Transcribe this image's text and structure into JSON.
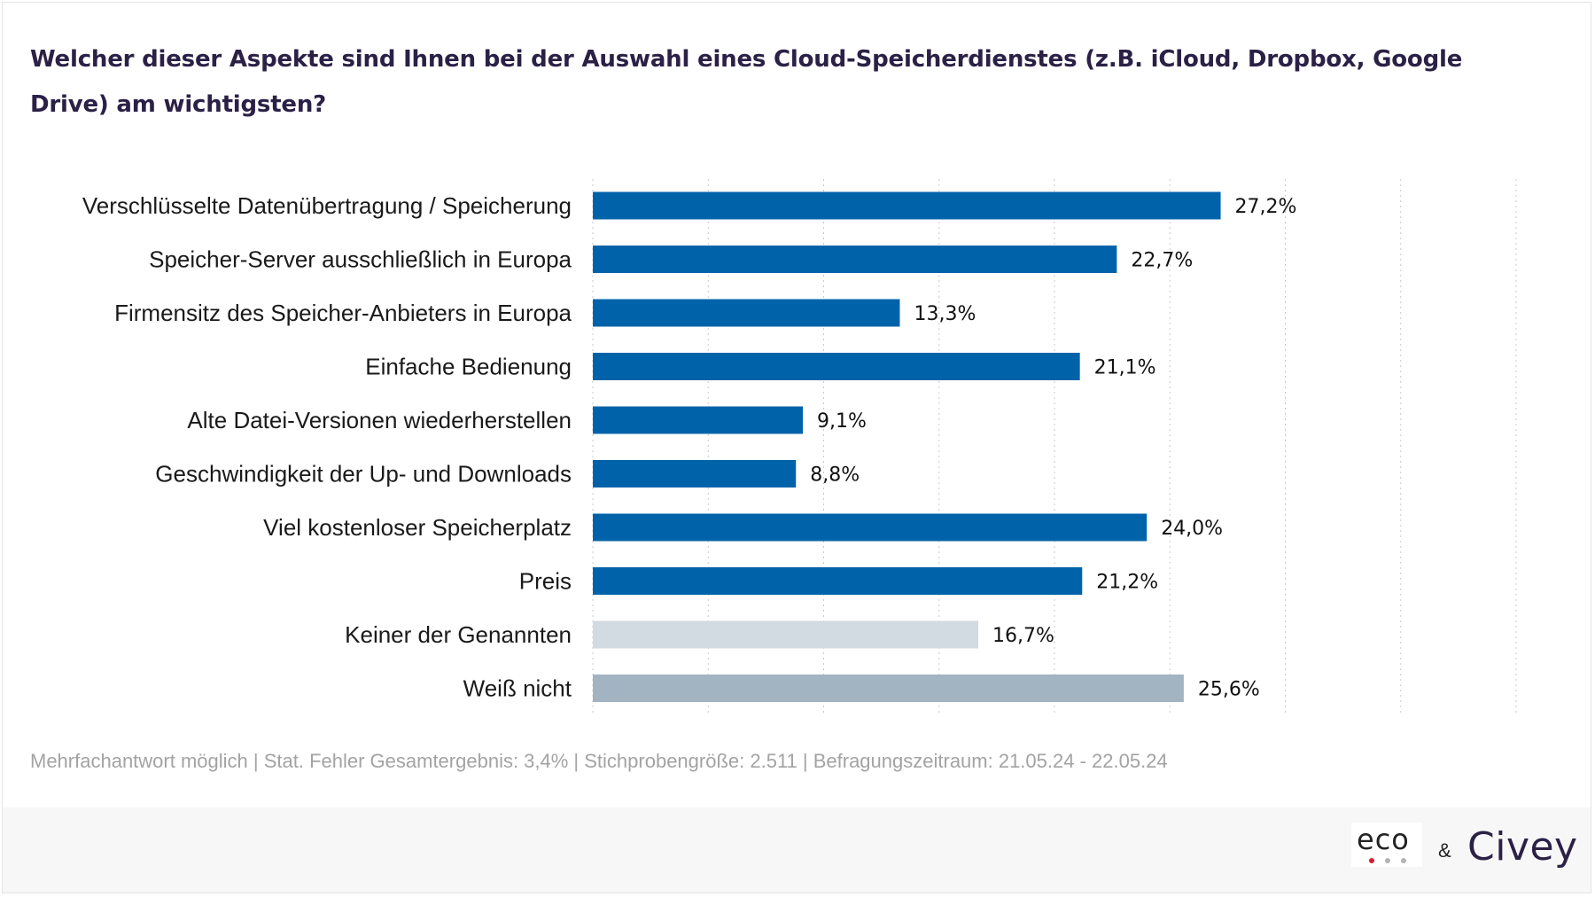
{
  "title": "Welcher dieser Aspekte sind Ihnen bei der Auswahl eines Cloud-Speicherdienstes (z.B. iCloud, Dropbox, Google Drive) am wichtigsten?",
  "footnote": "Mehrfachantwort möglich | Stat. Fehler Gesamtergebnis: 3,4% | Stichprobengröße: 2.511 | Befragungszeitraum: 21.05.24 - 22.05.24",
  "logos": {
    "eco": "eco",
    "amp": "&",
    "civey": "Civey"
  },
  "colors": {
    "primary": "#0063a9",
    "none": "#d2dae2",
    "dontknow": "#a2b3c1",
    "eco_red": "#d2202f",
    "eco_grey": "#b3b3b3"
  },
  "chart_data": {
    "type": "bar",
    "orientation": "horizontal",
    "categories": [
      "Verschlüsselte Datenübertragung / Speicherung",
      "Speicher-Server ausschließlich in Europa",
      "Firmensitz des Speicher-Anbieters in Europa",
      "Einfache Bedienung",
      "Alte Datei-Versionen wiederherstellen",
      "Geschwindigkeit der Up- und Downloads",
      "Viel kostenloser Speicherplatz",
      "Preis",
      "Keiner der Genannten",
      "Weiß nicht"
    ],
    "values": [
      27.2,
      22.7,
      13.3,
      21.1,
      9.1,
      8.8,
      24.0,
      21.2,
      16.7,
      25.6
    ],
    "value_labels": [
      "27,2%",
      "22,7%",
      "13,3%",
      "21,1%",
      "9,1%",
      "8,8%",
      "24,0%",
      "21,2%",
      "16,7%",
      "25,6%"
    ],
    "bar_colors": [
      "primary",
      "primary",
      "primary",
      "primary",
      "primary",
      "primary",
      "primary",
      "primary",
      "none",
      "dontknow"
    ],
    "xlim": [
      0,
      40
    ],
    "grid_step": 5,
    "grid": true,
    "grid_style": "dotted vertical",
    "legend": "none"
  }
}
